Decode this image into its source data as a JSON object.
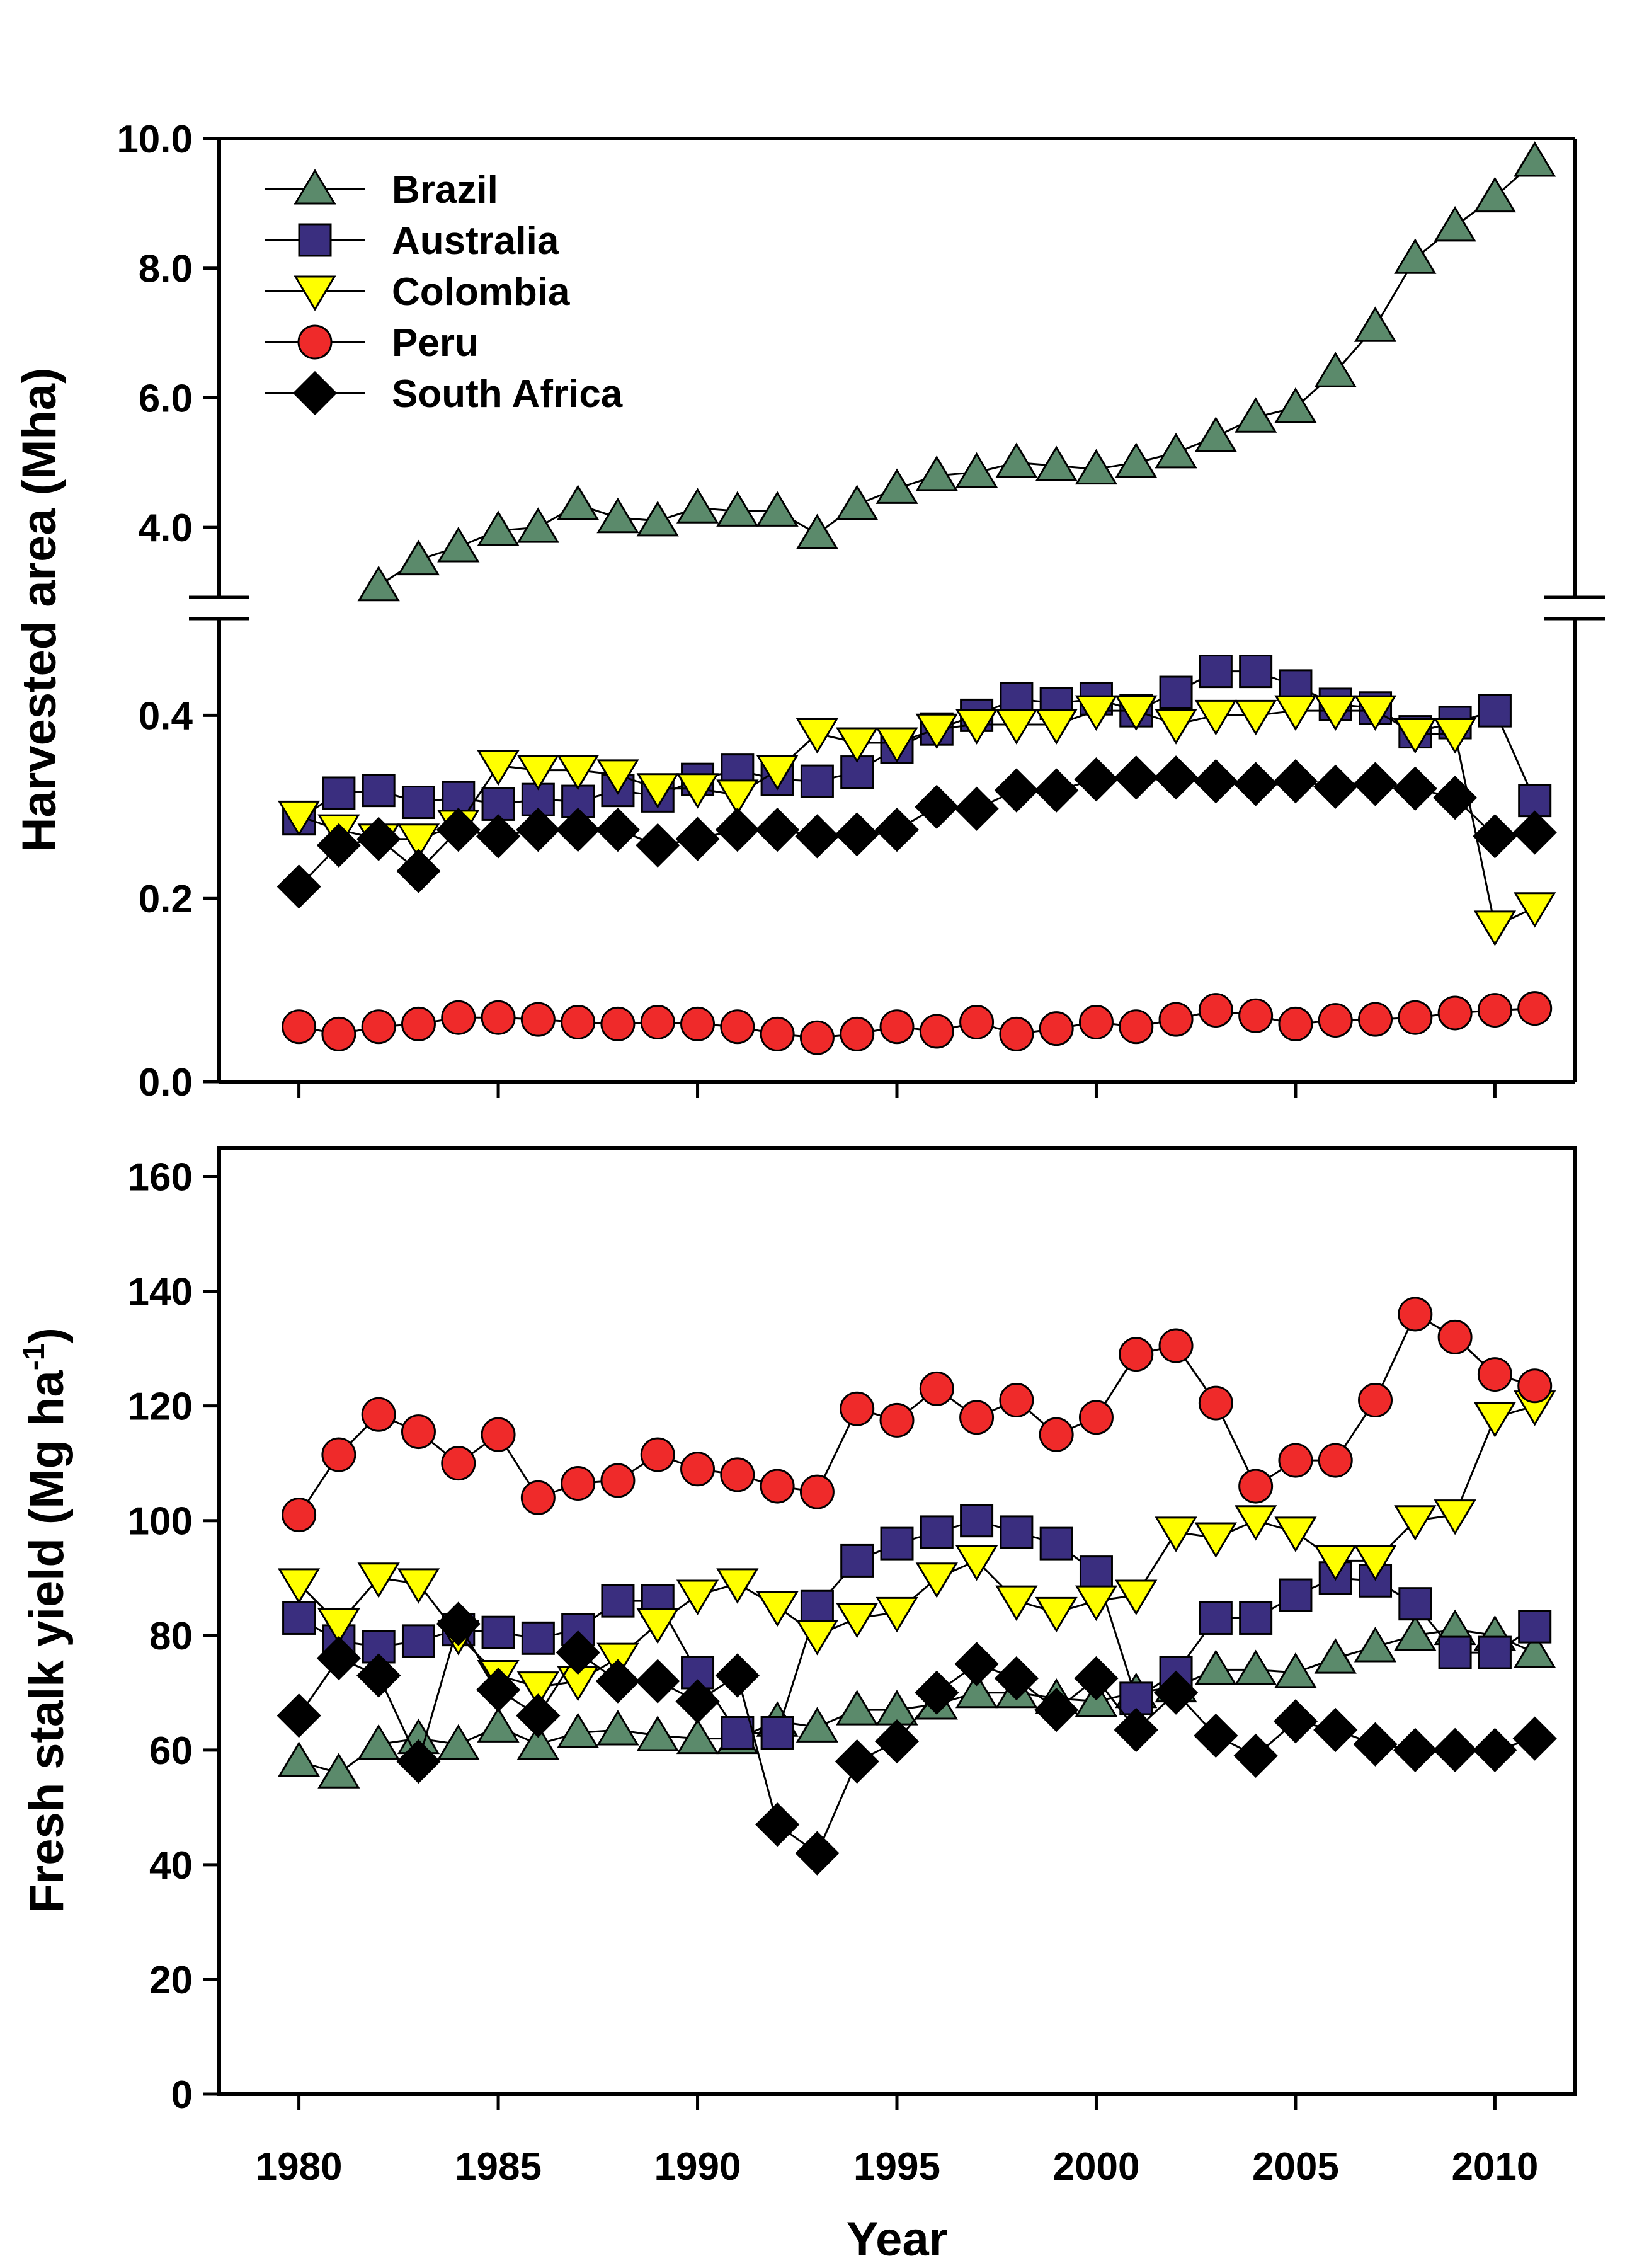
{
  "colors": {
    "Brazil": "#5b8a6b",
    "Australia": "#3a2e7f",
    "Colombia": "#ffff00",
    "Peru": "#ef2a2a",
    "South Africa": "#000000"
  },
  "chart_data": [
    {
      "type": "scatter",
      "title": "",
      "xlabel": "",
      "ylabel": "Harvested area (Mha)",
      "xlim": [
        1978,
        2012
      ],
      "xticks": [
        1980,
        1985,
        1990,
        1995,
        2000,
        2005,
        2010
      ],
      "ylim_upper": [
        3.0,
        10.0
      ],
      "ylim_lower": [
        0.0,
        0.5
      ],
      "yticks_upper": [
        "4.0",
        "6.0",
        "8.0",
        "10.0"
      ],
      "yticks_lower": [
        "0.0",
        "0.2",
        "0.4"
      ],
      "axis_break": true,
      "legend_position": "top-left",
      "x": [
        1980,
        1981,
        1982,
        1983,
        1984,
        1985,
        1986,
        1987,
        1988,
        1989,
        1990,
        1991,
        1992,
        1993,
        1994,
        1995,
        1996,
        1997,
        1998,
        1999,
        2000,
        2001,
        2002,
        2003,
        2004,
        2005,
        2006,
        2007,
        2008,
        2009,
        2010,
        2011
      ],
      "series": [
        {
          "name": "Brazil",
          "marker": "triangle-up",
          "values": [
            null,
            null,
            3.1,
            3.5,
            3.7,
            3.95,
            4.0,
            4.35,
            4.15,
            4.1,
            4.3,
            4.25,
            4.25,
            3.9,
            4.35,
            4.6,
            4.8,
            4.85,
            5.0,
            4.95,
            4.9,
            5.0,
            5.15,
            5.4,
            5.7,
            5.85,
            6.4,
            7.1,
            8.15,
            8.65,
            9.1,
            9.65
          ]
        },
        {
          "name": "Australia",
          "marker": "square",
          "values": [
            0.287,
            0.315,
            0.318,
            0.305,
            0.31,
            0.303,
            0.308,
            0.306,
            0.318,
            0.312,
            0.33,
            0.34,
            0.33,
            0.328,
            0.338,
            0.365,
            0.385,
            0.4,
            0.418,
            0.413,
            0.418,
            0.405,
            0.425,
            0.448,
            0.448,
            0.432,
            0.412,
            0.408,
            0.382,
            0.392,
            0.405,
            0.307
          ]
        },
        {
          "name": "Colombia",
          "marker": "triangle-down",
          "values": [
            0.29,
            0.275,
            0.265,
            0.265,
            0.28,
            0.345,
            0.34,
            0.34,
            0.335,
            0.32,
            0.32,
            0.313,
            0.34,
            0.38,
            0.37,
            0.37,
            0.385,
            0.39,
            0.39,
            0.39,
            0.405,
            0.405,
            0.39,
            0.4,
            0.4,
            0.405,
            0.405,
            0.405,
            0.38,
            0.38,
            0.17,
            0.19
          ]
        },
        {
          "name": "Peru",
          "marker": "circle",
          "values": [
            0.06,
            0.052,
            0.06,
            0.063,
            0.07,
            0.07,
            0.068,
            0.065,
            0.063,
            0.065,
            0.063,
            0.06,
            0.052,
            0.048,
            0.052,
            0.06,
            0.055,
            0.065,
            0.052,
            0.058,
            0.065,
            0.06,
            0.068,
            0.078,
            0.072,
            0.063,
            0.067,
            0.068,
            0.07,
            0.075,
            0.078,
            0.08
          ]
        },
        {
          "name": "South Africa",
          "marker": "diamond",
          "values": [
            0.213,
            0.258,
            0.265,
            0.23,
            0.275,
            0.268,
            0.275,
            0.275,
            0.275,
            0.258,
            0.265,
            0.275,
            0.275,
            0.268,
            0.27,
            0.275,
            0.3,
            0.298,
            0.318,
            0.318,
            0.33,
            0.332,
            0.332,
            0.328,
            0.325,
            0.328,
            0.322,
            0.325,
            0.32,
            0.31,
            0.268,
            0.272
          ]
        }
      ]
    },
    {
      "type": "scatter",
      "title": "",
      "xlabel": "Year",
      "ylabel": "Fresh stalk yield (Mg ha",
      "ylabel_superscript": "-1",
      "ylabel_suffix": ")",
      "xlim": [
        1978,
        2012
      ],
      "xticks": [
        1980,
        1985,
        1990,
        1995,
        2000,
        2005,
        2010
      ],
      "ylim": [
        0,
        165
      ],
      "yticks": [
        0,
        20,
        40,
        60,
        80,
        100,
        120,
        140,
        160
      ],
      "x": [
        1980,
        1981,
        1982,
        1983,
        1984,
        1985,
        1986,
        1987,
        1988,
        1989,
        1990,
        1991,
        1992,
        1993,
        1994,
        1995,
        1996,
        1997,
        1998,
        1999,
        2000,
        2001,
        2002,
        2003,
        2004,
        2005,
        2006,
        2007,
        2008,
        2009,
        2010,
        2011
      ],
      "series": [
        {
          "name": "Brazil",
          "marker": "triangle-up",
          "values": [
            58,
            56,
            61,
            62,
            61,
            64,
            61,
            63,
            63.5,
            62.5,
            62,
            62,
            65,
            64,
            67,
            67,
            68,
            70,
            70,
            69,
            68.5,
            70,
            71,
            74,
            74,
            73.5,
            76,
            78,
            80,
            81,
            80,
            77
          ]
        },
        {
          "name": "Australia",
          "marker": "square",
          "values": [
            83,
            79,
            78,
            79,
            81,
            80.5,
            79.5,
            81,
            86,
            86,
            73.5,
            63,
            63,
            85,
            93,
            96,
            98,
            100,
            98,
            96,
            91,
            69,
            73.5,
            83,
            83,
            87,
            90,
            89.5,
            85.5,
            77,
            77,
            81.5
          ]
        },
        {
          "name": "Colombia",
          "marker": "triangle-down",
          "values": [
            89,
            82,
            90,
            89,
            80,
            73,
            71,
            72,
            76,
            82,
            87,
            89,
            85,
            80,
            83,
            84,
            90,
            93,
            86,
            84,
            86,
            87,
            98,
            97,
            100,
            98,
            93,
            93,
            100,
            101,
            118,
            120
          ]
        },
        {
          "name": "Peru",
          "marker": "circle",
          "values": [
            101,
            111.5,
            118.5,
            115.5,
            110,
            115,
            104,
            106.5,
            107,
            111.5,
            109,
            108,
            106,
            105,
            119.5,
            117.5,
            123,
            118,
            121,
            115,
            118,
            129,
            130.5,
            120.5,
            106,
            110.5,
            110.5,
            121,
            136,
            132,
            125.5,
            123.5
          ]
        },
        {
          "name": "South Africa",
          "marker": "diamond",
          "values": [
            66,
            76,
            73,
            58,
            82,
            70.5,
            66,
            77,
            72,
            72,
            68.5,
            73,
            47,
            42,
            58,
            61.5,
            70,
            75,
            72.5,
            67,
            72.5,
            63.5,
            70,
            62.5,
            59,
            65,
            63.5,
            61,
            60,
            60,
            60,
            62
          ]
        }
      ]
    }
  ]
}
